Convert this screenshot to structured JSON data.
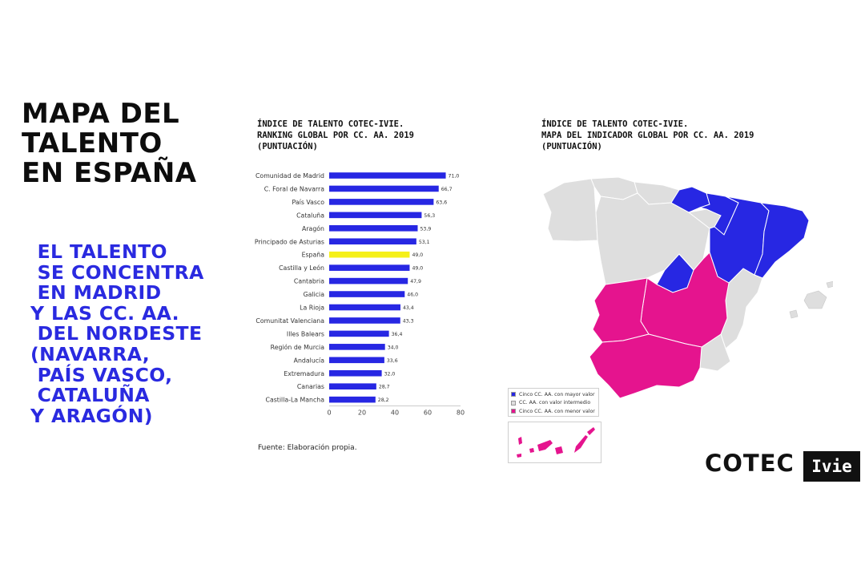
{
  "page": {
    "title_lines": [
      "MAPA DEL",
      "TALENTO",
      "EN ESPAÑA"
    ],
    "subtitle_lines": [
      " EL TALENTO",
      " SE CONCENTRA",
      " EN MADRID",
      "Y LAS CC. AA.",
      " DEL NORDESTE",
      "(NAVARRA,",
      " PAÍS VASCO,",
      " CATALUÑA",
      "Y ARAGÓN)"
    ],
    "source": "Fuente: Elaboración propia.",
    "logos": {
      "cotec": "COTEC",
      "ivie": "Ivie"
    }
  },
  "colors": {
    "bar": "#2727e3",
    "highlight": "#f5f019",
    "magenta": "#e5148e",
    "grey": "#dedede",
    "title": "#0d0d0d",
    "accent_text": "#2a2ae0"
  },
  "chart_data": {
    "type": "bar",
    "orientation": "horizontal",
    "title_lines": [
      "ÍNDICE DE TALENTO COTEC-IVIE.",
      "RANKING GLOBAL POR CC. AA. 2019",
      "(PUNTUACIÓN)"
    ],
    "categories": [
      "Comunidad de Madrid",
      "C. Foral de Navarra",
      "País Vasco",
      "Cataluña",
      "Aragón",
      "Principado de Asturias",
      "España",
      "Castilla y León",
      "Cantabria",
      "Galicia",
      "La Rioja",
      "Comunitat Valenciana",
      "Illes Balears",
      "Región de Murcia",
      "Andalucía",
      "Extremadura",
      "Canarias",
      "Castilla-La Mancha"
    ],
    "values": [
      71.0,
      66.7,
      63.6,
      56.3,
      53.9,
      53.1,
      49.0,
      49.0,
      47.9,
      46.0,
      43.4,
      43.3,
      36.4,
      34.0,
      33.6,
      32.0,
      28.7,
      28.2
    ],
    "value_labels": [
      "71,0",
      "66,7",
      "63,6",
      "56,3",
      "53,9",
      "53,1",
      "49,0",
      "49,0",
      "47,9",
      "46,0",
      "43,4",
      "43,3",
      "36,4",
      "34,0",
      "33,6",
      "32,0",
      "28,7",
      "28,2"
    ],
    "highlight_category": "España",
    "xlim": [
      0,
      80
    ],
    "xticks": [
      "0",
      "20",
      "40",
      "60",
      "80"
    ],
    "grid": false,
    "xlabel": "",
    "ylabel": ""
  },
  "map": {
    "title_lines": [
      "ÍNDICE DE TALENTO COTEC-IVIE.",
      "MAPA DEL INDICADOR GLOBAL POR CC. AA. 2019",
      "(PUNTUACIÓN)"
    ],
    "legend": [
      {
        "label": "Cinco CC. AA. con mayor valor",
        "color": "#2727e3"
      },
      {
        "label": "CC. AA. con valor intermedio",
        "color": "#dedede"
      },
      {
        "label": "Cinco CC. AA. con menor valor",
        "color": "#e5148e"
      }
    ]
  }
}
